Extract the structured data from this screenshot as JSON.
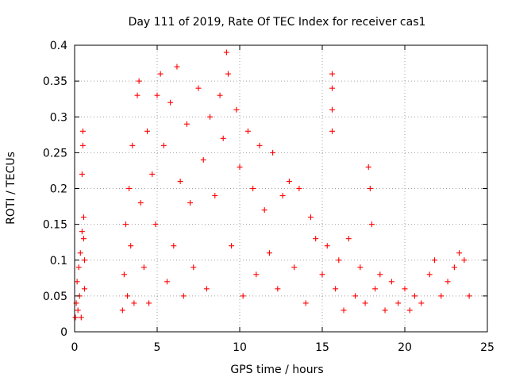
{
  "chart_data": {
    "type": "scatter",
    "title": "Day 111 of 2019, Rate Of TEC Index for receiver cas1",
    "xlabel": "GPS time / hours",
    "ylabel": "ROTI / TECUs",
    "xlim": [
      0,
      25
    ],
    "ylim": [
      0,
      0.4
    ],
    "xticks": [
      "0",
      "5",
      "10",
      "15",
      "20",
      "25"
    ],
    "yticks": [
      "0",
      "0.05",
      "0.1",
      "0.15",
      "0.2",
      "0.25",
      "0.3",
      "0.35",
      "0.4"
    ],
    "grid": true,
    "marker": "+",
    "color": "#ff0000",
    "series": [
      {
        "name": "ROTI",
        "description": "dense ROTI scatter, summarized as points per time segment",
        "points": [
          [
            0.05,
            0.02
          ],
          [
            0.1,
            0.04
          ],
          [
            0.15,
            0.07
          ],
          [
            0.2,
            0.03
          ],
          [
            0.25,
            0.09
          ],
          [
            0.3,
            0.05
          ],
          [
            0.35,
            0.11
          ],
          [
            0.4,
            0.02
          ],
          [
            0.45,
            0.14
          ],
          [
            0.5,
            0.28
          ],
          [
            0.5,
            0.26
          ],
          [
            0.45,
            0.22
          ],
          [
            0.55,
            0.16
          ],
          [
            0.55,
            0.13
          ],
          [
            0.6,
            0.1
          ],
          [
            0.6,
            0.06
          ],
          [
            2.9,
            0.03
          ],
          [
            3.0,
            0.08
          ],
          [
            3.1,
            0.15
          ],
          [
            3.2,
            0.05
          ],
          [
            3.3,
            0.2
          ],
          [
            3.4,
            0.12
          ],
          [
            3.5,
            0.26
          ],
          [
            3.6,
            0.04
          ],
          [
            3.8,
            0.33
          ],
          [
            3.9,
            0.35
          ],
          [
            4.0,
            0.18
          ],
          [
            4.2,
            0.09
          ],
          [
            4.4,
            0.28
          ],
          [
            4.5,
            0.04
          ],
          [
            4.7,
            0.22
          ],
          [
            4.9,
            0.15
          ],
          [
            5.0,
            0.33
          ],
          [
            5.2,
            0.36
          ],
          [
            5.4,
            0.26
          ],
          [
            5.6,
            0.07
          ],
          [
            5.8,
            0.32
          ],
          [
            6.0,
            0.12
          ],
          [
            6.2,
            0.37
          ],
          [
            6.4,
            0.21
          ],
          [
            6.6,
            0.05
          ],
          [
            6.8,
            0.29
          ],
          [
            7.0,
            0.18
          ],
          [
            7.2,
            0.09
          ],
          [
            7.5,
            0.34
          ],
          [
            7.8,
            0.24
          ],
          [
            8.0,
            0.06
          ],
          [
            8.2,
            0.3
          ],
          [
            8.5,
            0.19
          ],
          [
            8.8,
            0.33
          ],
          [
            9.0,
            0.27
          ],
          [
            9.2,
            0.39
          ],
          [
            9.3,
            0.36
          ],
          [
            9.5,
            0.12
          ],
          [
            9.8,
            0.31
          ],
          [
            10.0,
            0.23
          ],
          [
            10.2,
            0.05
          ],
          [
            10.5,
            0.28
          ],
          [
            10.8,
            0.2
          ],
          [
            11.0,
            0.08
          ],
          [
            11.2,
            0.26
          ],
          [
            11.5,
            0.17
          ],
          [
            11.8,
            0.11
          ],
          [
            12.0,
            0.25
          ],
          [
            12.3,
            0.06
          ],
          [
            12.6,
            0.19
          ],
          [
            13.0,
            0.21
          ],
          [
            13.3,
            0.09
          ],
          [
            13.6,
            0.2
          ],
          [
            14.0,
            0.04
          ],
          [
            14.3,
            0.16
          ],
          [
            14.6,
            0.13
          ],
          [
            15.0,
            0.08
          ],
          [
            15.3,
            0.12
          ],
          [
            15.6,
            0.36
          ],
          [
            15.6,
            0.34
          ],
          [
            15.6,
            0.31
          ],
          [
            15.6,
            0.28
          ],
          [
            15.8,
            0.06
          ],
          [
            16.0,
            0.1
          ],
          [
            16.3,
            0.03
          ],
          [
            16.6,
            0.13
          ],
          [
            17.0,
            0.05
          ],
          [
            17.3,
            0.09
          ],
          [
            17.6,
            0.04
          ],
          [
            17.8,
            0.23
          ],
          [
            17.9,
            0.2
          ],
          [
            18.0,
            0.15
          ],
          [
            18.2,
            0.06
          ],
          [
            18.5,
            0.08
          ],
          [
            18.8,
            0.03
          ],
          [
            19.2,
            0.07
          ],
          [
            19.6,
            0.04
          ],
          [
            20.0,
            0.06
          ],
          [
            20.3,
            0.03
          ],
          [
            20.6,
            0.05
          ],
          [
            21.0,
            0.04
          ],
          [
            21.5,
            0.08
          ],
          [
            21.8,
            0.1
          ],
          [
            22.2,
            0.05
          ],
          [
            22.6,
            0.07
          ],
          [
            23.0,
            0.09
          ],
          [
            23.3,
            0.11
          ],
          [
            23.6,
            0.1
          ],
          [
            23.9,
            0.05
          ]
        ]
      }
    ]
  }
}
